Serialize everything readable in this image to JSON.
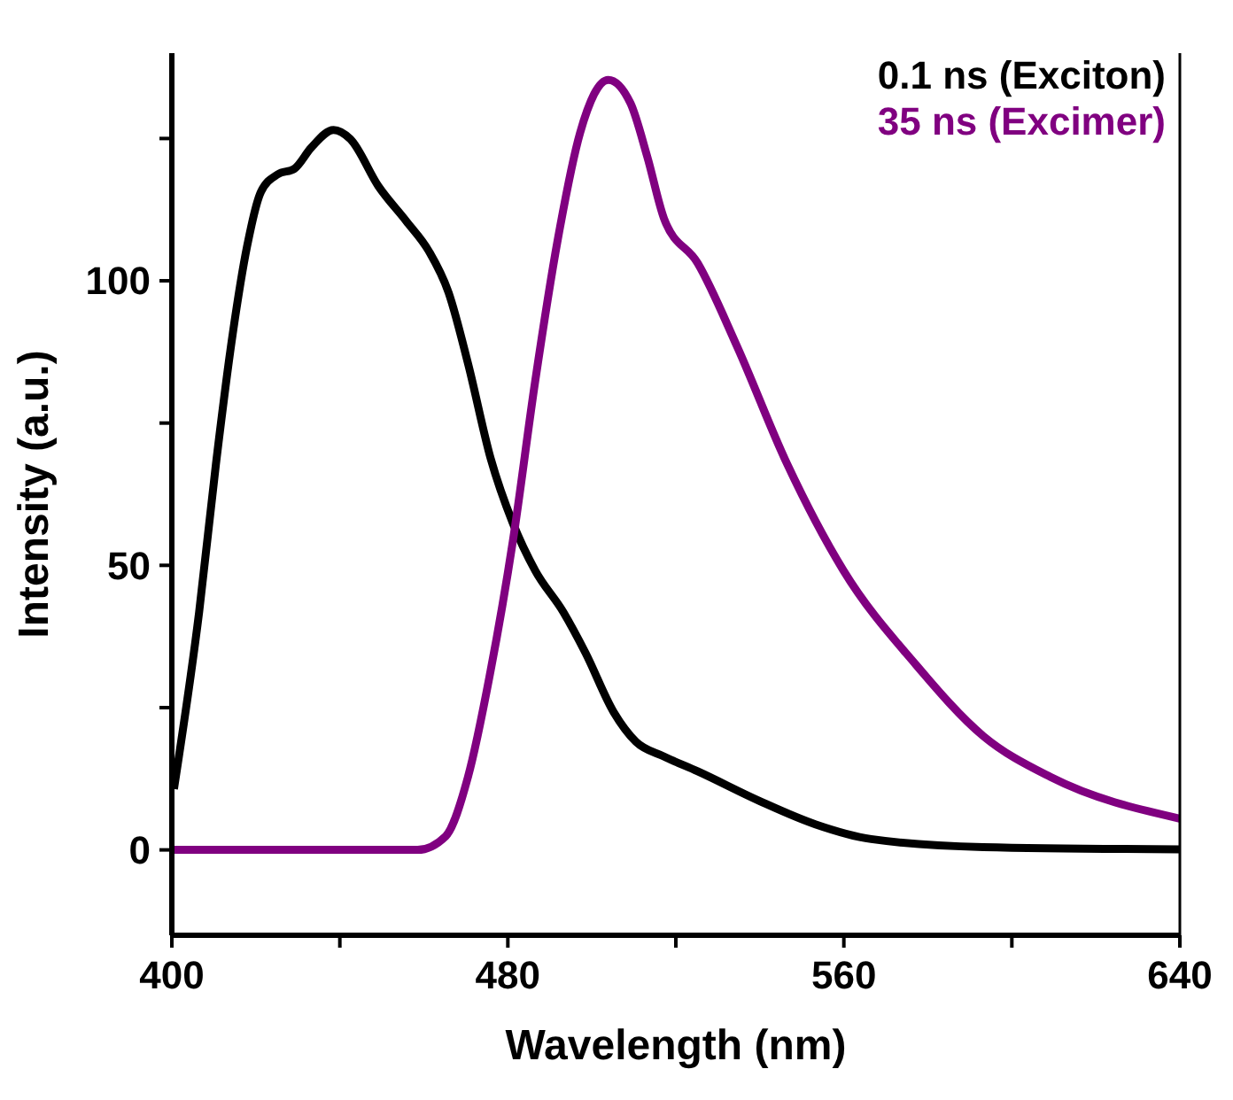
{
  "chart_data": {
    "type": "line",
    "xlabel": "Wavelength (nm)",
    "ylabel": "Intensity (a.u.)",
    "xlim": [
      400,
      640
    ],
    "ylim": [
      -15,
      140
    ],
    "xticks": [
      400,
      {
        "value": 440,
        "label": null
      },
      480,
      {
        "value": 520,
        "label": null
      },
      560,
      {
        "value": 600,
        "label": null
      },
      640
    ],
    "yticks": [
      0,
      {
        "value": 25,
        "label": null
      },
      50,
      {
        "value": 75,
        "label": null
      },
      100,
      {
        "value": 125,
        "label": null
      }
    ],
    "legend": "top right",
    "grid": false,
    "marker": "none",
    "line_style": "solid",
    "series": [
      {
        "name": "0.1 ns (Exciton)",
        "color": "#000000",
        "x": [
          400.5,
          406.5,
          410.5,
          414.5,
          417.9,
          421.2,
          425.2,
          429.2,
          433.2,
          438.5,
          442.5,
          449.2,
          455.9,
          461.2,
          465.9,
          470.5,
          475.9,
          481.2,
          486.5,
          493.2,
          498.5,
          505.2,
          510.5,
          517.2,
          525.2,
          539.9,
          553.2,
          566.5,
          593.2,
          640
        ],
        "values": [
          10.7,
          41.8,
          67.8,
          90.7,
          106,
          115.6,
          118.7,
          119.7,
          123.4,
          126.5,
          124.9,
          116.6,
          110.4,
          105.2,
          97.9,
          85.5,
          68.8,
          57.4,
          49.1,
          41.8,
          34.6,
          24.2,
          19,
          16.4,
          13.8,
          8.6,
          4.5,
          1.9,
          0.5,
          0.1
        ]
      },
      {
        "name": "35 ns (Excimer)",
        "color": "#800080",
        "x": [
          400,
          458.5,
          465.2,
          470.5,
          475.9,
          481.2,
          486.5,
          491.9,
          497.2,
          503.9,
          509.2,
          513.2,
          517.2,
          525.2,
          534.5,
          546.5,
          559.9,
          577.2,
          593.2,
          609.2,
          640
        ],
        "values": [
          0,
          0,
          2.4,
          12.8,
          31.5,
          54.3,
          82.3,
          107.3,
          126,
          135.3,
          131.2,
          121.8,
          110.9,
          103.1,
          88.6,
          67.8,
          49.1,
          32.5,
          20,
          12.8,
          5.5
        ]
      }
    ]
  }
}
